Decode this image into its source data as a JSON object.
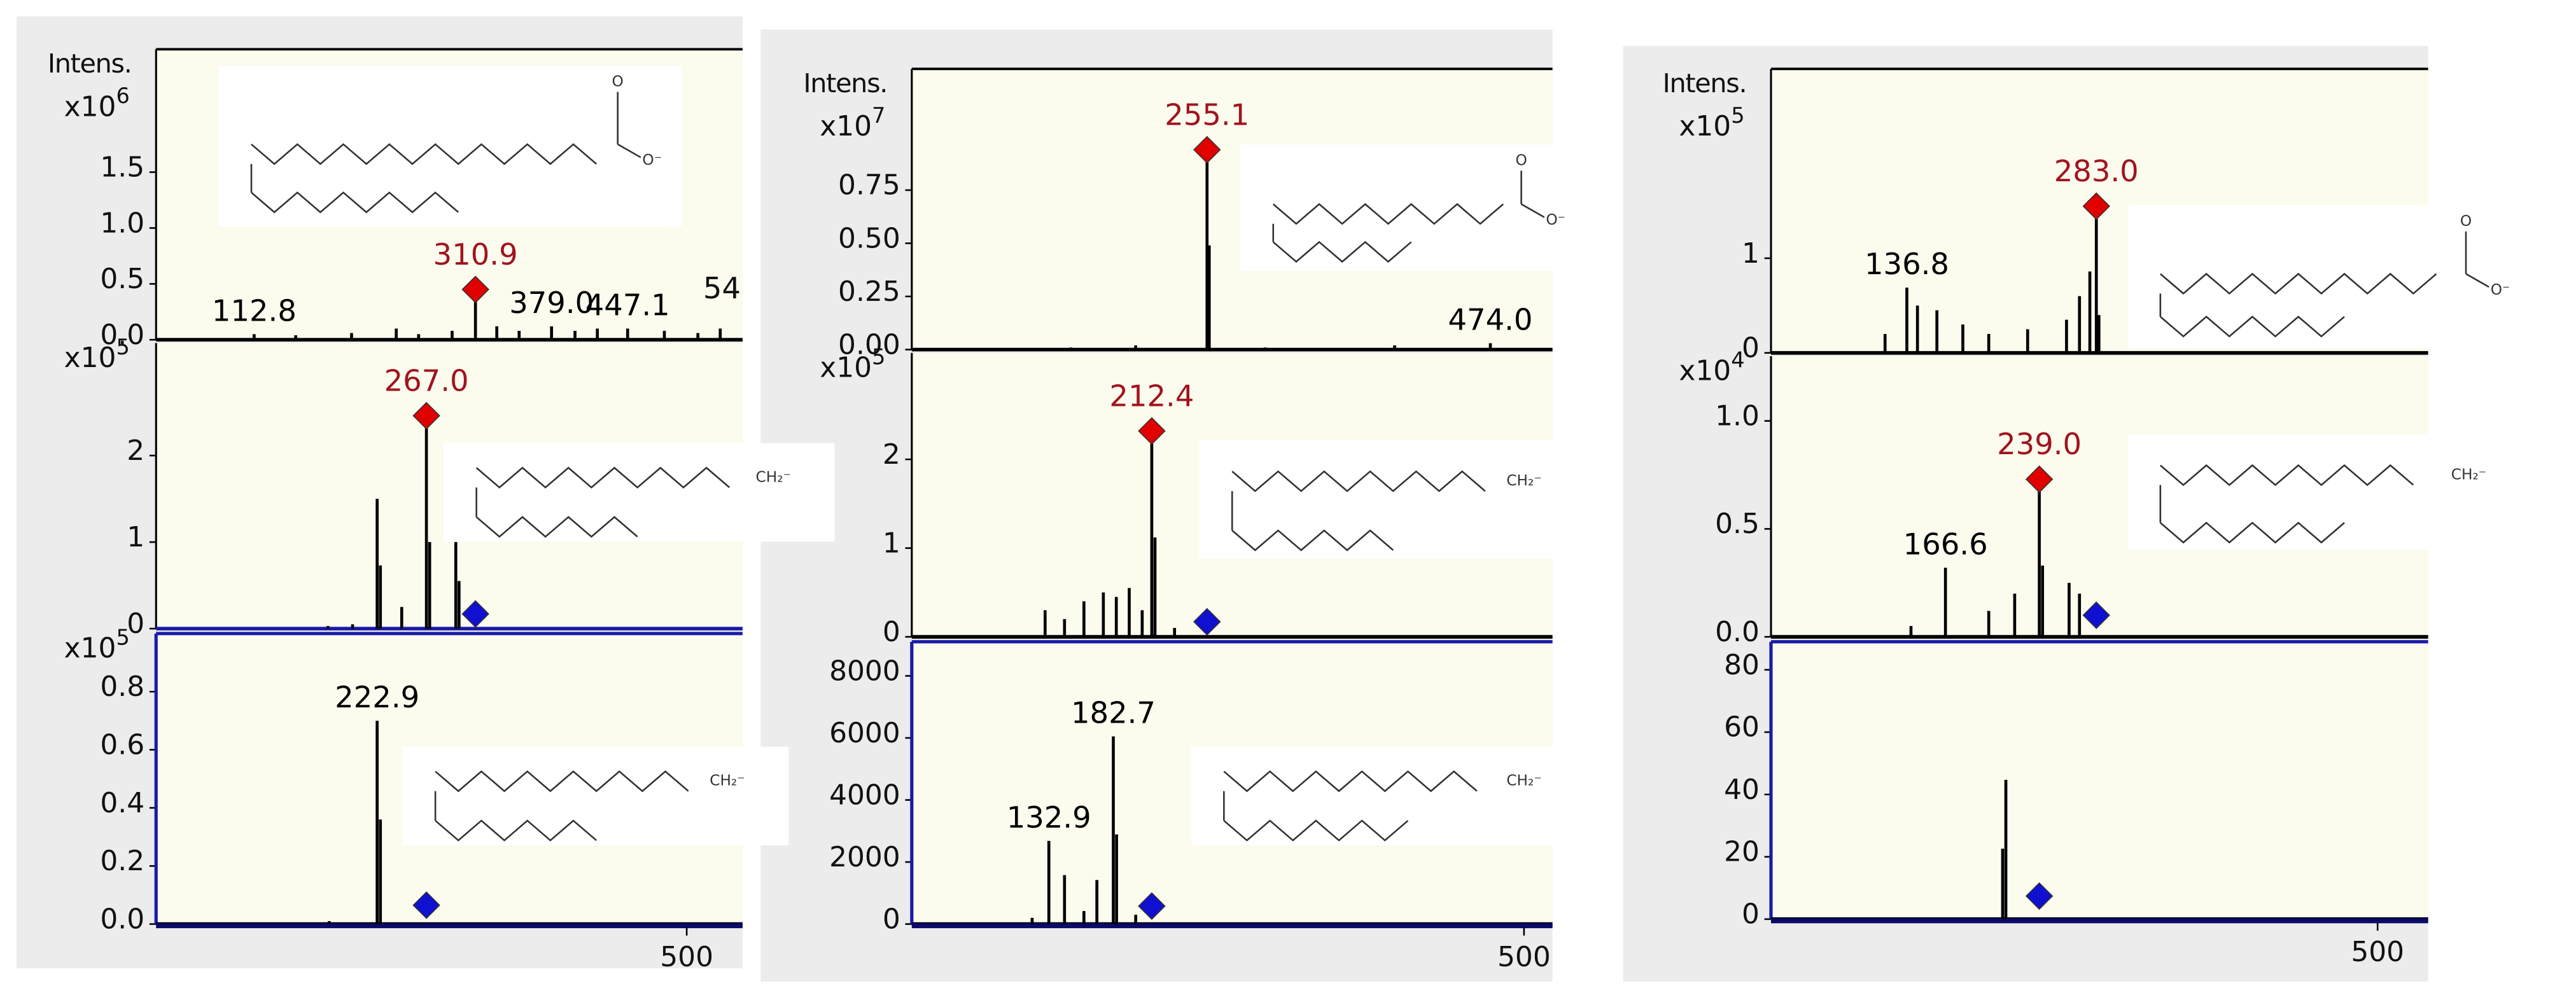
{
  "chart_data": [
    {
      "type": "bar",
      "ylabel": "Intens.",
      "multiplier": {
        "base": "x10",
        "exponent": "6"
      },
      "color": "#000000",
      "xlim": [
        25,
        550
      ],
      "ylim": [
        0,
        2.6
      ],
      "yticks": [
        {
          "value": 0,
          "label": "0.0"
        },
        0.5,
        {
          "value": 1,
          "label": "1.0"
        },
        1.5
      ],
      "x": [
        112.8,
        150,
        200,
        240,
        260,
        290,
        310.9,
        330,
        350,
        379.0,
        400,
        420,
        447.1,
        480,
        510,
        530
      ],
      "values": [
        0.05,
        0.04,
        0.06,
        0.1,
        0.05,
        0.08,
        0.45,
        0.12,
        0.08,
        0.12,
        0.08,
        0.1,
        0.1,
        0.08,
        0.06,
        0.1
      ],
      "peak_labels": [
        {
          "text": "112.8",
          "color": "#000000"
        },
        null,
        null,
        null,
        null,
        null,
        {
          "text": "310.9",
          "color": "#a0141e"
        },
        null,
        null,
        {
          "text": "379.0",
          "color": "#000000"
        },
        null,
        null,
        {
          "text": "447.1",
          "color": "#000000"
        },
        null,
        null,
        null
      ],
      "annotations": [
        "54"
      ],
      "markers": [
        {
          "x": 310.9,
          "y": 0.45,
          "color": "#e00000"
        }
      ],
      "structure_labels": [
        "O",
        "O⁻"
      ]
    },
    {
      "type": "bar",
      "multiplier": {
        "base": "x10",
        "exponent": "5"
      },
      "color": "#000000",
      "xlim": [
        25,
        550
      ],
      "ylim": [
        0,
        3.3
      ],
      "yticks": [
        0,
        1,
        2
      ],
      "x": [
        178.9,
        200.9,
        222.9,
        225.8,
        244.9,
        267.0,
        269.9,
        293.3,
        296.2
      ],
      "values": [
        0.03,
        0.05,
        1.5,
        0.73,
        0.25,
        2.46,
        1.0,
        1.0,
        0.55
      ],
      "peak_labels": [
        null,
        null,
        null,
        null,
        null,
        {
          "text": "267.0",
          "color": "#a0141e"
        },
        null,
        null,
        null
      ],
      "markers": [
        {
          "x": 267.0,
          "y": 2.46,
          "color": "#e00000"
        },
        {
          "x": 310.9,
          "y": 0.17,
          "color": "#1010d0"
        }
      ],
      "structure_labels": [
        "CH₂⁻"
      ]
    },
    {
      "type": "bar",
      "multiplier": {
        "base": "x10",
        "exponent": "5"
      },
      "color": "#000000",
      "xlim": [
        25,
        550
      ],
      "ylim": [
        0,
        1.0
      ],
      "yticks": [
        {
          "value": 0,
          "label": "0.0"
        },
        0.2,
        0.4,
        0.6,
        0.8
      ],
      "xticks": [
        500
      ],
      "x": [
        180,
        222.9,
        225.8
      ],
      "values": [
        0.01,
        0.7,
        0.36
      ],
      "peak_labels": [
        null,
        {
          "text": "222.9",
          "color": "#000000"
        },
        null
      ],
      "markers": [
        {
          "x": 267.0,
          "y": 0.065,
          "color": "#1010d0"
        }
      ],
      "structure_labels": [
        "CH₂⁻"
      ]
    },
    {
      "type": "bar",
      "ylabel": "Intens.",
      "multiplier": {
        "base": "x10",
        "exponent": "7"
      },
      "color": "#000000",
      "xlim": [
        27,
        522
      ],
      "ylim": [
        0,
        1.32
      ],
      "yticks": [
        {
          "value": 0,
          "label": "0.00"
        },
        0.25,
        {
          "value": 0.5,
          "label": "0.50"
        },
        0.75
      ],
      "x": [
        150,
        200,
        255.1,
        256.8,
        300,
        400,
        474.0
      ],
      "values": [
        0.01,
        0.02,
        0.94,
        0.49,
        0.01,
        0.02,
        0.03
      ],
      "peak_labels": [
        null,
        null,
        {
          "text": "255.1",
          "color": "#a0141e"
        },
        null,
        null,
        null,
        {
          "text": "474.0",
          "color": "#000000"
        }
      ],
      "markers": [
        {
          "x": 255.1,
          "y": 0.94,
          "color": "#e00000"
        }
      ],
      "structure_labels": [
        "O",
        "O⁻"
      ]
    },
    {
      "type": "bar",
      "multiplier": {
        "base": "x10",
        "exponent": "5"
      },
      "color": "#000000",
      "xlim": [
        27,
        522
      ],
      "ylim": [
        0,
        3.2
      ],
      "yticks": [
        0,
        1,
        2
      ],
      "x": [
        130,
        145,
        160,
        175,
        185,
        195,
        205,
        212.4,
        214.9,
        230
      ],
      "values": [
        0.3,
        0.2,
        0.4,
        0.5,
        0.45,
        0.55,
        0.3,
        2.32,
        1.12,
        0.1
      ],
      "peak_labels": [
        null,
        null,
        null,
        null,
        null,
        null,
        null,
        {
          "text": "212.4",
          "color": "#a0141e"
        },
        null,
        null
      ],
      "markers": [
        {
          "x": 212.4,
          "y": 2.32,
          "color": "#e00000"
        },
        {
          "x": 255.1,
          "y": 0.17,
          "color": "#1010d0"
        }
      ],
      "structure_labels": [
        "CH₂⁻"
      ]
    },
    {
      "type": "bar",
      "color": "#000000",
      "xlim": [
        27,
        522
      ],
      "ylim": [
        0,
        9100
      ],
      "yticks": [
        0,
        2000,
        4000,
        6000,
        8000
      ],
      "xticks": [
        500
      ],
      "x": [
        120,
        132.9,
        145,
        160,
        170,
        182.7,
        185.2,
        200
      ],
      "values": [
        200,
        2680,
        1580,
        420,
        1420,
        6050,
        2890,
        300
      ],
      "peak_labels": [
        null,
        {
          "text": "132.9",
          "color": "#000000"
        },
        null,
        null,
        null,
        {
          "text": "182.7",
          "color": "#000000"
        },
        null,
        null
      ],
      "markers": [
        {
          "x": 212.4,
          "y": 580,
          "color": "#1010d0"
        }
      ],
      "structure_labels": [
        "CH₂⁻"
      ]
    },
    {
      "type": "bar",
      "ylabel": "Intens.",
      "multiplier": {
        "base": "x10",
        "exponent": "5"
      },
      "color": "#000000",
      "xlim": [
        32,
        539
      ],
      "ylim": [
        0,
        3.0
      ],
      "yticks": [
        0,
        1
      ],
      "x": [
        120,
        136.8,
        145,
        160,
        180,
        200,
        230,
        260,
        270,
        278,
        283.0,
        285
      ],
      "values": [
        0.2,
        0.69,
        0.5,
        0.45,
        0.3,
        0.2,
        0.25,
        0.35,
        0.6,
        0.86,
        1.55,
        0.4
      ],
      "peak_labels": [
        null,
        {
          "text": "136.8",
          "color": "#000000"
        },
        null,
        null,
        null,
        null,
        null,
        null,
        null,
        null,
        {
          "text": "283.0",
          "color": "#a0141e"
        },
        null
      ],
      "markers": [
        {
          "x": 283.0,
          "y": 1.55,
          "color": "#e00000"
        }
      ],
      "structure_labels": [
        "O",
        "O⁻"
      ]
    },
    {
      "type": "bar",
      "multiplier": {
        "base": "x10",
        "exponent": "4"
      },
      "color": "#000000",
      "xlim": [
        32,
        539
      ],
      "ylim": [
        0,
        1.3
      ],
      "yticks": [
        {
          "value": 0,
          "label": "0.0"
        },
        0.5,
        {
          "value": 1,
          "label": "1.0"
        }
      ],
      "x": [
        140,
        166.6,
        200,
        220,
        239.0,
        241.5,
        262,
        270
      ],
      "values": [
        0.05,
        0.32,
        0.12,
        0.2,
        0.73,
        0.33,
        0.25,
        0.2
      ],
      "peak_labels": [
        null,
        {
          "text": "166.6",
          "color": "#000000"
        },
        null,
        null,
        {
          "text": "239.0",
          "color": "#a0141e"
        },
        null,
        null,
        null
      ],
      "markers": [
        {
          "x": 239.0,
          "y": 0.73,
          "color": "#e00000"
        },
        {
          "x": 283.0,
          "y": 0.1,
          "color": "#1010d0"
        }
      ],
      "structure_labels": [
        "CH₂⁻"
      ]
    },
    {
      "type": "bar",
      "color": "#000000",
      "xlim": [
        32,
        539
      ],
      "ylim": [
        0,
        89
      ],
      "yticks": [
        0,
        20,
        40,
        60,
        80
      ],
      "xticks": [
        500
      ],
      "x": [
        210.7,
        213.2
      ],
      "values": [
        22.6,
        44.7
      ],
      "peak_labels": [
        null,
        null
      ],
      "markers": [
        {
          "x": 239.0,
          "y": 7.4,
          "color": "#1010d0"
        }
      ]
    }
  ]
}
